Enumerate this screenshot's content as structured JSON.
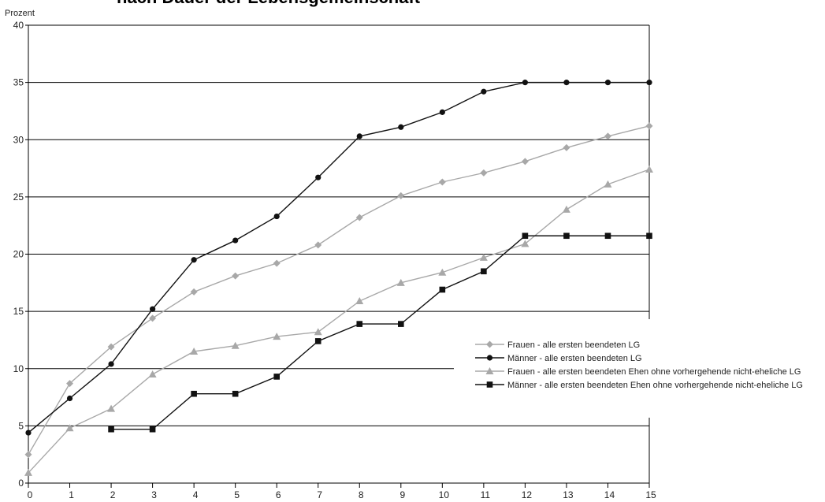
{
  "chart_data": {
    "type": "line",
    "title": "nach Dauer der Lebensgemeinschaft",
    "ylabel": "Prozent",
    "xlabel": "",
    "x": [
      0,
      1,
      2,
      3,
      4,
      5,
      6,
      7,
      8,
      9,
      10,
      11,
      12,
      13,
      14,
      15
    ],
    "xlim": [
      0,
      15
    ],
    "ylim": [
      0,
      40
    ],
    "yticks": [
      0,
      5,
      10,
      15,
      20,
      25,
      30,
      35,
      40
    ],
    "grid": "horizontal",
    "legend_position": "right",
    "series": [
      {
        "name": "Frauen  - alle ersten beendeten LG",
        "marker": "diamond",
        "color": "#a8a8a8",
        "values": [
          2.5,
          8.7,
          11.9,
          14.4,
          16.7,
          18.1,
          19.2,
          20.8,
          23.2,
          25.1,
          26.3,
          27.1,
          28.1,
          29.3,
          30.3,
          31.2
        ]
      },
      {
        "name": "Männer - alle ersten beendeten LG",
        "marker": "circle",
        "color": "#111111",
        "values": [
          4.4,
          7.4,
          10.4,
          15.2,
          19.5,
          21.2,
          23.3,
          26.7,
          30.3,
          31.1,
          32.4,
          34.2,
          35.0,
          35.0,
          35.0,
          35.0
        ]
      },
      {
        "name": "Frauen  - alle ersten beendeten Ehen ohne vorhergehende nicht-eheliche LG",
        "marker": "triangle",
        "color": "#a8a8a8",
        "values": [
          0.9,
          4.8,
          6.5,
          9.5,
          11.5,
          12.0,
          12.8,
          13.2,
          15.9,
          17.5,
          18.4,
          19.7,
          20.9,
          23.9,
          26.1,
          27.4
        ]
      },
      {
        "name": "Männer - alle ersten beendeten Ehen ohne vorhergehende nicht-eheliche LG",
        "marker": "square",
        "color": "#111111",
        "values": [
          null,
          null,
          4.7,
          4.7,
          7.8,
          7.8,
          9.3,
          12.4,
          13.9,
          13.9,
          16.9,
          18.5,
          21.6,
          21.6,
          21.6,
          21.6
        ]
      }
    ]
  }
}
